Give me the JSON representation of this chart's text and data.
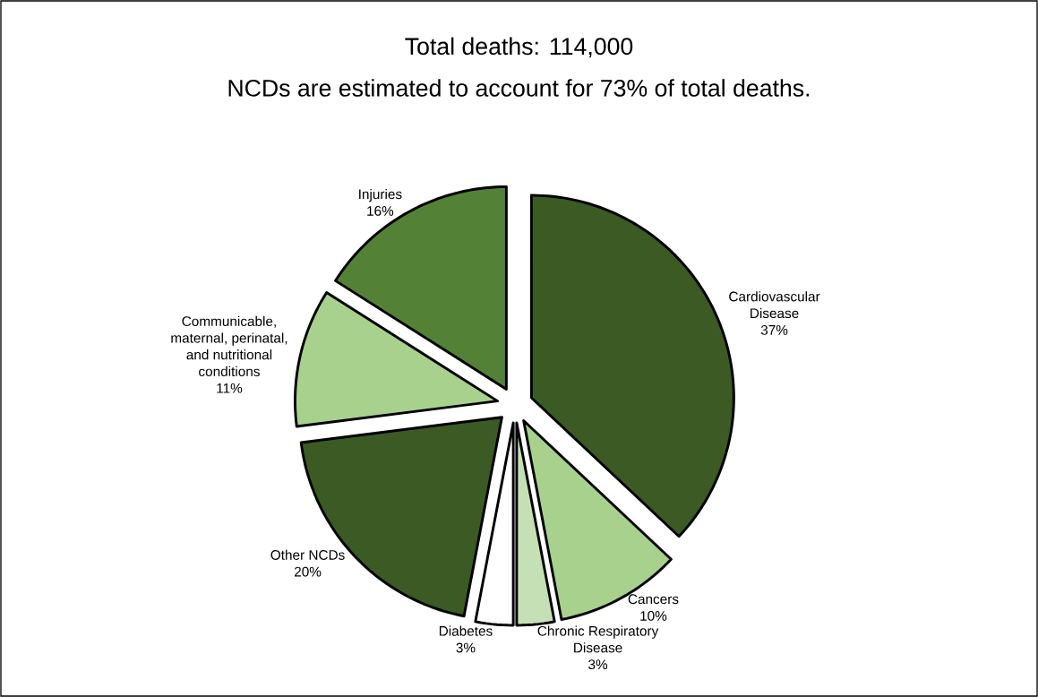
{
  "chart_data": {
    "type": "pie",
    "title": "Total deaths: 114,000",
    "subtitle": "NCDs are estimated to account for 73% of total deaths.",
    "categories": [
      "Cardiovascular Disease",
      "Cancers",
      "Chronic Respiratory Disease",
      "Diabetes",
      "Other NCDs",
      "Communicable, maternal, perinatal, and nutritional conditions",
      "Injuries"
    ],
    "values": [
      37,
      10,
      3,
      3,
      20,
      11,
      16
    ],
    "colors": [
      "#3b5a24",
      "#a9d18e",
      "#c5e0b4",
      "#ffffff",
      "#3b5a24",
      "#a9d18e",
      "#538135"
    ],
    "value_labels": [
      "37%",
      "10%",
      "3%",
      "3%",
      "20%",
      "11%",
      "16%"
    ]
  }
}
